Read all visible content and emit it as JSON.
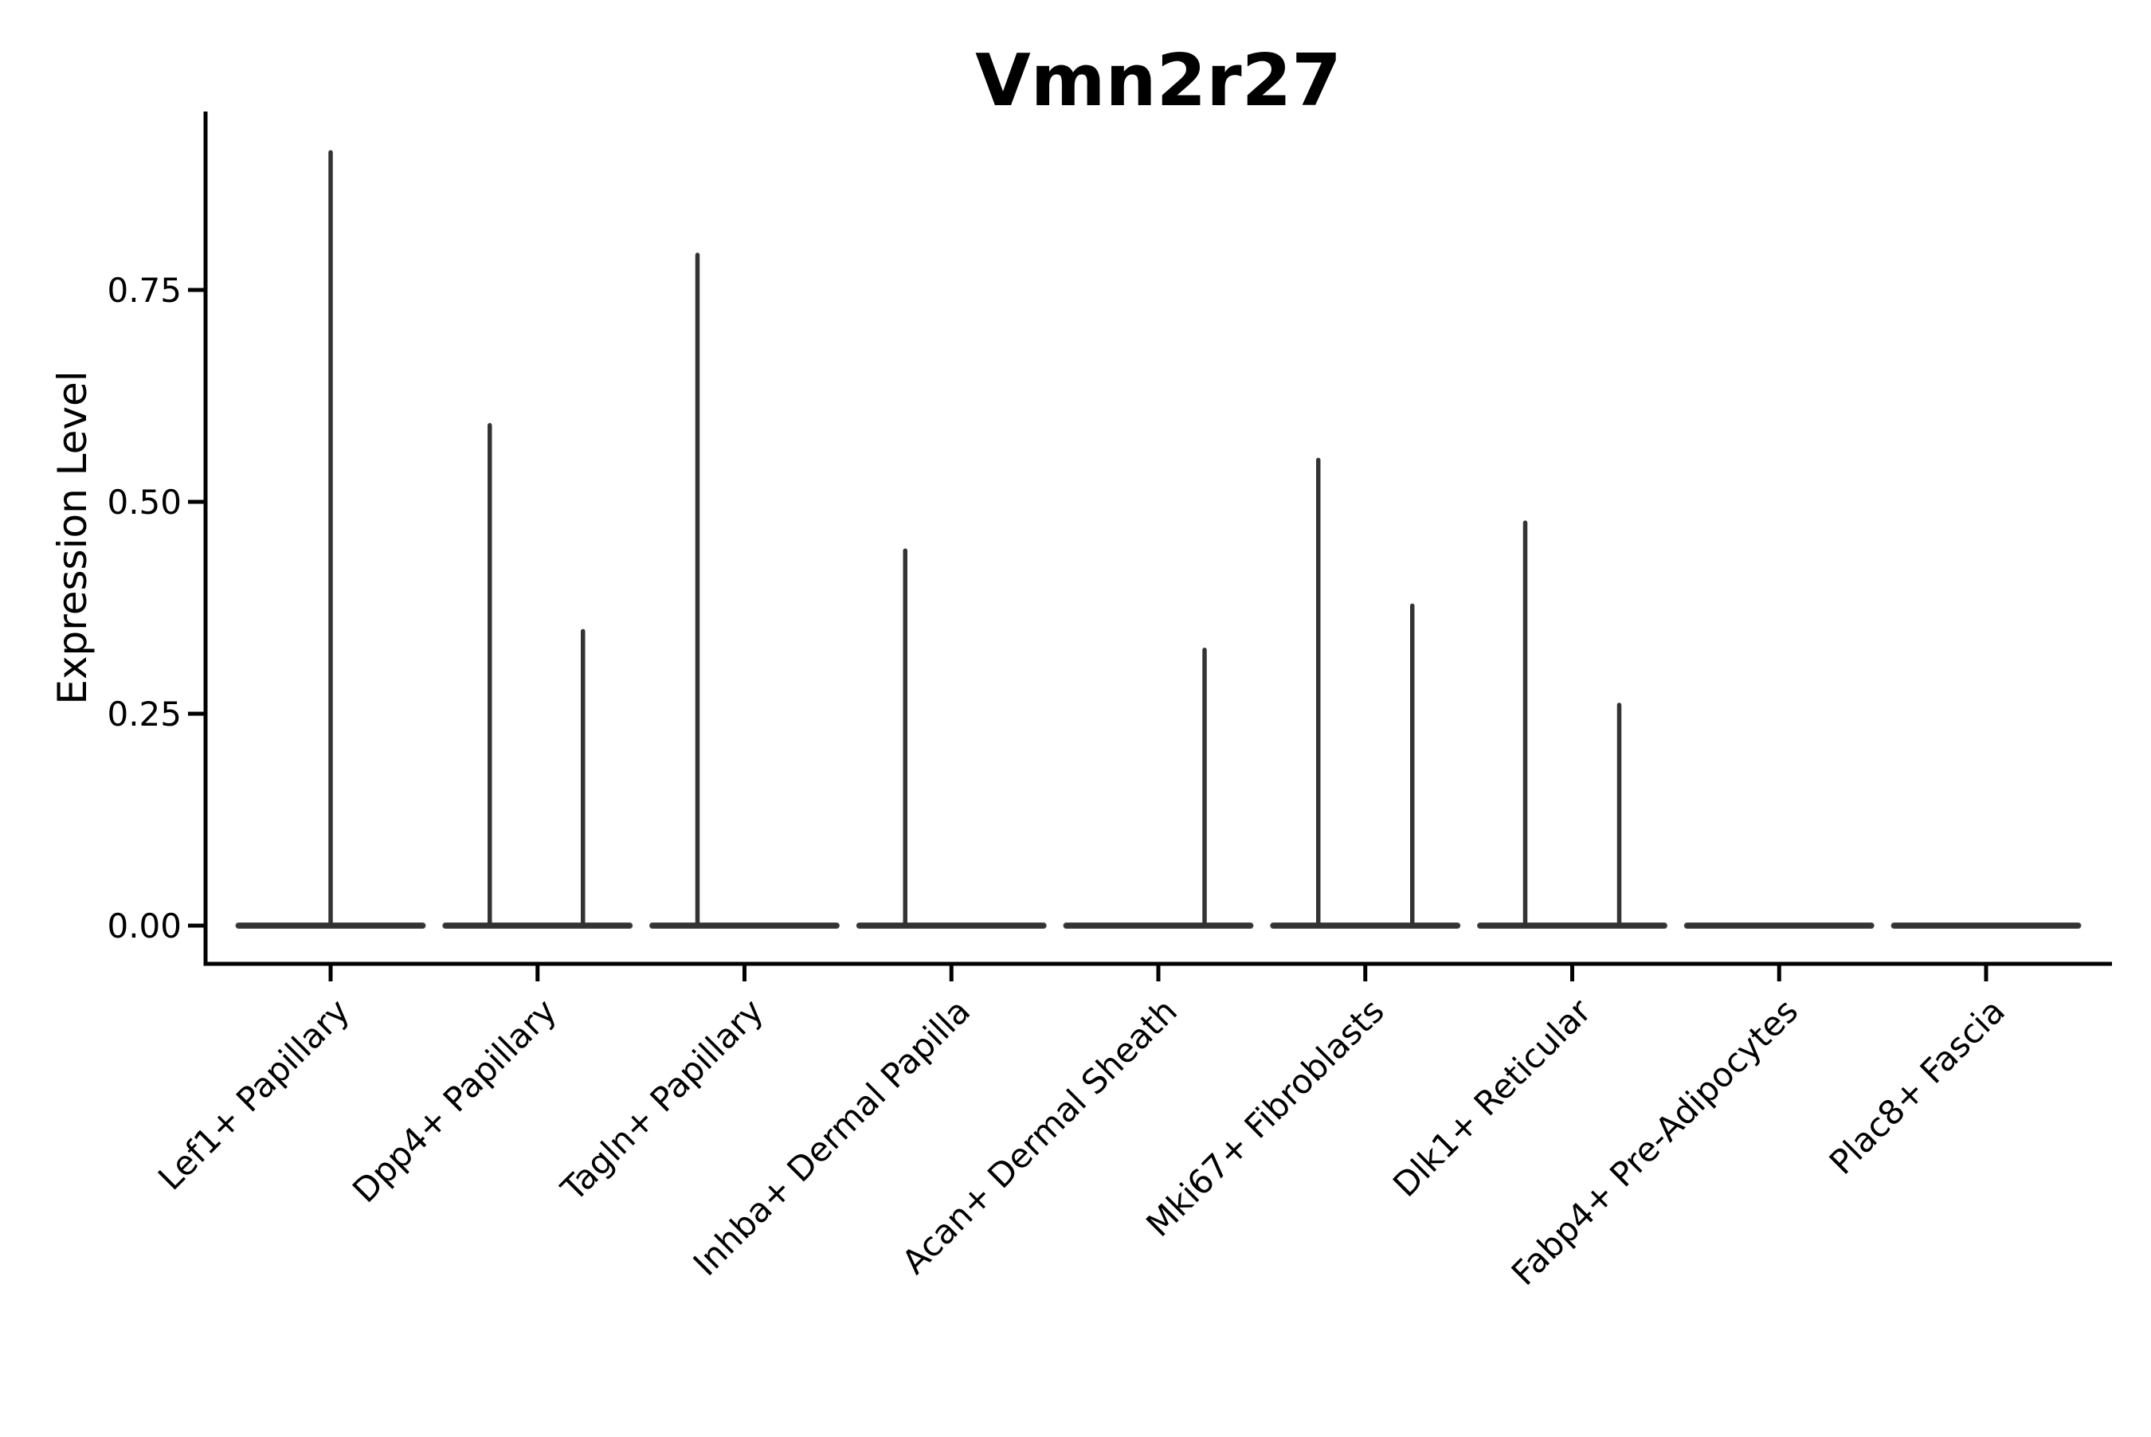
{
  "title": "Vmn2r27",
  "colors": {
    "background": "#ffffff",
    "violin": "#333333",
    "violin_edge": "#555555",
    "axis": "#000000",
    "text": "#000000"
  },
  "chart_data": {
    "type": "violin",
    "title": "Vmn2r27",
    "xlabel": "",
    "ylabel": "Expression Level",
    "ylim": [
      -0.045,
      0.96
    ],
    "grid": false,
    "legend": "none",
    "yticks": [
      0,
      0.25,
      0.5,
      0.75
    ],
    "ytick_labels": [
      "0.00",
      "0.25",
      "0.50",
      "0.75"
    ],
    "categories": [
      "Lef1+ Papillary",
      "Dpp4+ Papillary",
      "Tagln+ Papillary",
      "Inhba+ Dermal Papilla",
      "Acan+ Dermal Sheath",
      "Mki67+ Fibroblasts",
      "Dlk1+ Reticular",
      "Fabp4+ Pre-Adipocytes",
      "Plac8+ Fascia"
    ],
    "violins": [
      {
        "category": "Lef1+ Papillary",
        "zero_density_bar": true,
        "spikes": [
          {
            "offset": 0,
            "value": 0.915
          }
        ]
      },
      {
        "category": "Dpp4+ Papillary",
        "zero_density_bar": true,
        "spikes": [
          {
            "offset": -60,
            "value": 0.593
          },
          {
            "offset": 57,
            "value": 0.35
          }
        ]
      },
      {
        "category": "Tagln+ Papillary",
        "zero_density_bar": true,
        "spikes": [
          {
            "offset": -59,
            "value": 0.794
          }
        ]
      },
      {
        "category": "Inhba+ Dermal Papilla",
        "zero_density_bar": true,
        "spikes": [
          {
            "offset": -58,
            "value": 0.445
          }
        ]
      },
      {
        "category": "Acan+ Dermal Sheath",
        "zero_density_bar": true,
        "spikes": [
          {
            "offset": 58,
            "value": 0.328
          }
        ]
      },
      {
        "category": "Mki67+ Fibroblasts",
        "zero_density_bar": true,
        "spikes": [
          {
            "offset": -59,
            "value": 0.552
          },
          {
            "offset": 59,
            "value": 0.38
          }
        ]
      },
      {
        "category": "Dlk1+ Reticular",
        "zero_density_bar": true,
        "spikes": [
          {
            "offset": -59,
            "value": 0.478
          },
          {
            "offset": 59,
            "value": 0.263
          }
        ]
      },
      {
        "category": "Fabp4+ Pre-Adipocytes",
        "zero_density_bar": true,
        "spikes": []
      },
      {
        "category": "Plac8+ Fascia",
        "zero_density_bar": true,
        "spikes": []
      }
    ]
  }
}
